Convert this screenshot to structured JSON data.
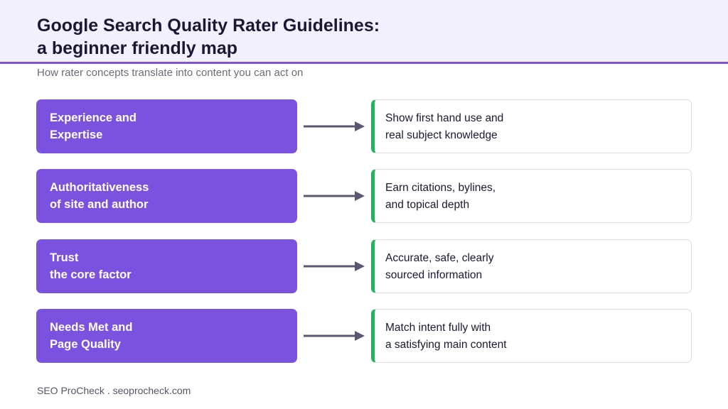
{
  "header": {
    "title_line1": "Google Search Quality Rater Guidelines:",
    "title_line2": "a beginner friendly map",
    "subtitle": "How rater concepts translate into content you can act on"
  },
  "rows": [
    {
      "concept_line1": "Experience and",
      "concept_line2": "Expertise",
      "action_line1": "Show first hand use and",
      "action_line2": "real subject knowledge"
    },
    {
      "concept_line1": "Authoritativeness",
      "concept_line2": "of site and author",
      "action_line1": "Earn citations, bylines,",
      "action_line2": "and topical depth"
    },
    {
      "concept_line1": "Trust",
      "concept_line2": "the core factor",
      "action_line1": "Accurate, safe, clearly",
      "action_line2": "sourced information"
    },
    {
      "concept_line1": "Needs Met and",
      "concept_line2": "Page Quality",
      "action_line1": "Match intent fully with",
      "action_line2": "a satisfying main content"
    }
  ],
  "footer": {
    "text": "SEO ProCheck . seoprocheck.com"
  },
  "colors": {
    "accent_purple": "#7b52e0",
    "accent_green": "#21b35f",
    "header_bg": "#f2f0fc",
    "arrow": "#5b5770"
  },
  "icons": {
    "connector": "right-arrow-icon"
  }
}
